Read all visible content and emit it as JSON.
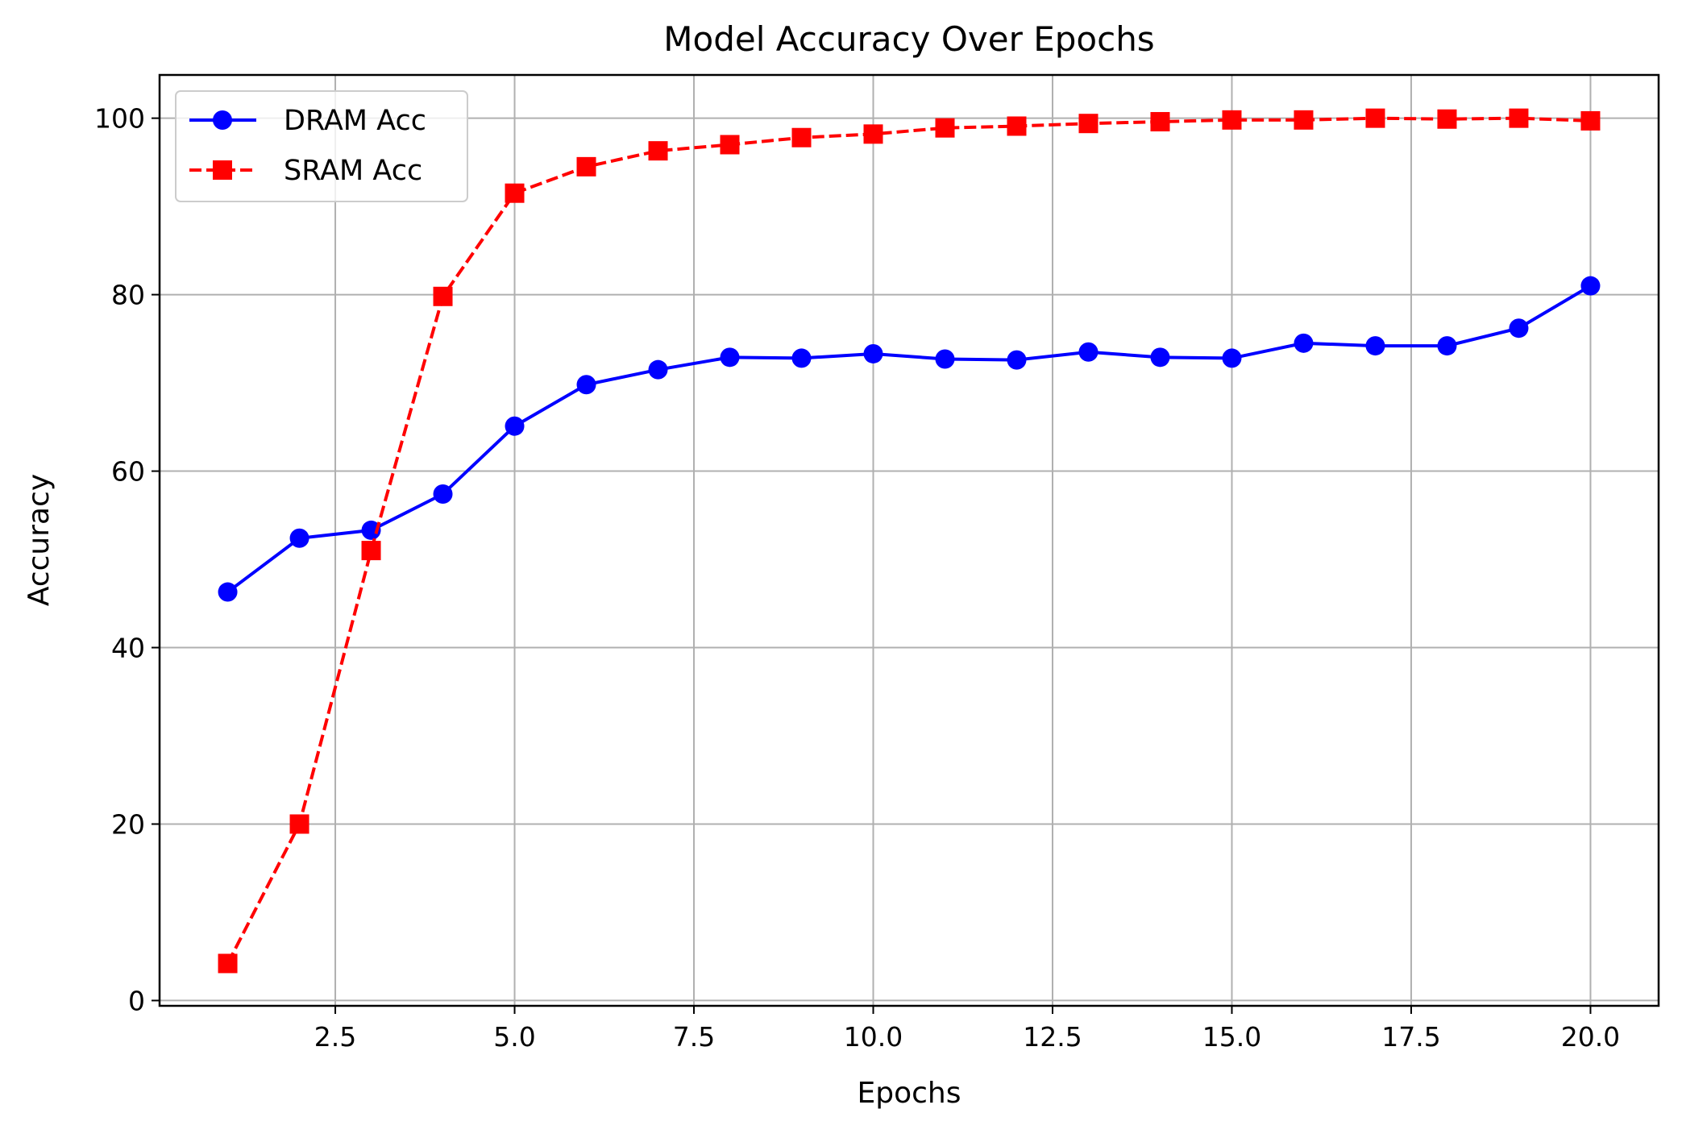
{
  "chart_data": {
    "type": "line",
    "title": "Model Accuracy Over Epochs",
    "xlabel": "Epochs",
    "ylabel": "Accuracy",
    "xlim": [
      0.05,
      20.95
    ],
    "ylim": [
      -0.6,
      104.9
    ],
    "xticks": [
      2.5,
      5.0,
      7.5,
      10.0,
      12.5,
      15.0,
      17.5,
      20.0
    ],
    "xtick_labels": [
      "2.5",
      "5.0",
      "7.5",
      "10.0",
      "12.5",
      "15.0",
      "17.5",
      "20.0"
    ],
    "yticks": [
      0,
      20,
      40,
      60,
      80,
      100
    ],
    "ytick_labels": [
      "0",
      "20",
      "40",
      "60",
      "80",
      "100"
    ],
    "grid": true,
    "legend_position": "top-left",
    "x": [
      1,
      2,
      3,
      4,
      5,
      6,
      7,
      8,
      9,
      10,
      11,
      12,
      13,
      14,
      15,
      16,
      17,
      18,
      19,
      20
    ],
    "series": [
      {
        "name": "DRAM Acc",
        "color": "#0000ff",
        "line_style": "solid",
        "marker": "circle",
        "values": [
          46.3,
          52.4,
          53.3,
          57.4,
          65.1,
          69.8,
          71.5,
          72.9,
          72.8,
          73.3,
          72.7,
          72.6,
          73.5,
          72.9,
          72.8,
          74.5,
          74.2,
          74.2,
          76.2,
          81.0
        ]
      },
      {
        "name": "SRAM Acc",
        "color": "#ff0000",
        "line_style": "dashed",
        "marker": "square",
        "values": [
          4.2,
          20.0,
          51.0,
          79.8,
          91.5,
          94.5,
          96.3,
          97.0,
          97.8,
          98.2,
          98.9,
          99.1,
          99.4,
          99.6,
          99.8,
          99.8,
          100.0,
          99.9,
          100.0,
          99.7
        ]
      }
    ]
  }
}
